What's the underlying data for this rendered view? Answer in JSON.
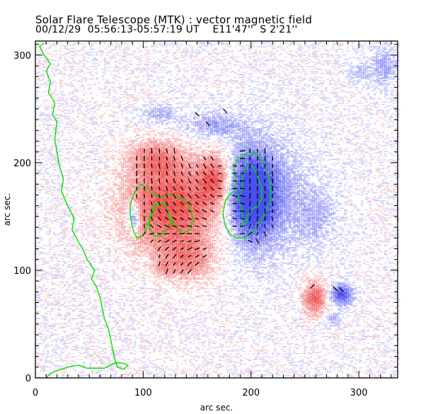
{
  "chart_data": {
    "type": "heatmap",
    "title": "Solar Flare Telescope (MTK) : vector magnetic field",
    "subtitle": {
      "date": "00/12/29",
      "time_range": "05:56:13-05:57:19 UT",
      "longitude": "E11'47''",
      "latitude": "S 2'21''"
    },
    "xlabel": "arc sec.",
    "ylabel": "arc sec.",
    "xlim": [
      0,
      336
    ],
    "ylim": [
      0,
      313
    ],
    "xticks": [
      0,
      100,
      200,
      300
    ],
    "yticks": [
      0,
      100,
      200,
      300
    ],
    "x_minor_step": 10,
    "y_minor_step": 10,
    "colors": {
      "positive_polarity": "#f05050",
      "negative_polarity": "#4a50f0",
      "contour": "#00e000",
      "vectors": "#000000"
    },
    "regions": [
      {
        "name": "positive-main",
        "polarity": "positive",
        "cx": 125,
        "cy": 160,
        "rx": 45,
        "ry": 45,
        "strength": 0.9
      },
      {
        "name": "positive-upper",
        "polarity": "positive",
        "cx": 110,
        "cy": 205,
        "rx": 25,
        "ry": 18,
        "strength": 0.45
      },
      {
        "name": "positive-lower",
        "polarity": "positive",
        "cx": 140,
        "cy": 110,
        "rx": 25,
        "ry": 20,
        "strength": 0.45
      },
      {
        "name": "positive-east",
        "polarity": "positive",
        "cx": 165,
        "cy": 185,
        "rx": 15,
        "ry": 25,
        "strength": 0.7
      },
      {
        "name": "positive-spot-sw",
        "polarity": "positive",
        "cx": 258,
        "cy": 75,
        "rx": 12,
        "ry": 16,
        "strength": 0.75
      },
      {
        "name": "positive-faint",
        "polarity": "positive",
        "cx": 118,
        "cy": 103,
        "rx": 8,
        "ry": 8,
        "strength": 0.25
      },
      {
        "name": "negative-main",
        "polarity": "negative",
        "cx": 200,
        "cy": 170,
        "rx": 20,
        "ry": 38,
        "strength": 1.0
      },
      {
        "name": "negative-halo",
        "polarity": "negative",
        "cx": 210,
        "cy": 170,
        "rx": 40,
        "ry": 55,
        "strength": 0.45
      },
      {
        "name": "negative-west",
        "polarity": "negative",
        "cx": 90,
        "cy": 150,
        "rx": 6,
        "ry": 14,
        "strength": 0.7
      },
      {
        "name": "negative-north",
        "polarity": "negative",
        "cx": 165,
        "cy": 235,
        "rx": 30,
        "ry": 12,
        "strength": 0.35
      },
      {
        "name": "negative-nw",
        "polarity": "negative",
        "cx": 115,
        "cy": 245,
        "rx": 18,
        "ry": 10,
        "strength": 0.3
      },
      {
        "name": "negative-spot-sw",
        "polarity": "negative",
        "cx": 283,
        "cy": 78,
        "rx": 11,
        "ry": 10,
        "strength": 0.85
      },
      {
        "name": "negative-small",
        "polarity": "negative",
        "cx": 275,
        "cy": 55,
        "rx": 8,
        "ry": 6,
        "strength": 0.35
      },
      {
        "name": "negative-ne",
        "polarity": "negative",
        "cx": 322,
        "cy": 290,
        "rx": 12,
        "ry": 18,
        "strength": 0.35
      },
      {
        "name": "negative-ne2",
        "polarity": "negative",
        "cx": 300,
        "cy": 285,
        "rx": 12,
        "ry": 8,
        "strength": 0.25
      },
      {
        "name": "negative-east",
        "polarity": "negative",
        "cx": 260,
        "cy": 150,
        "rx": 18,
        "ry": 28,
        "strength": 0.25
      }
    ],
    "contours": [
      {
        "name": "limb",
        "points": [
          [
            8,
            311
          ],
          [
            4,
            308
          ],
          [
            8,
            300
          ],
          [
            14,
            292
          ],
          [
            10,
            285
          ],
          [
            14,
            275
          ],
          [
            12,
            265
          ],
          [
            17,
            258
          ],
          [
            18,
            255
          ],
          [
            16,
            245
          ],
          [
            20,
            238
          ],
          [
            18,
            222
          ],
          [
            20,
            210
          ],
          [
            22,
            198
          ],
          [
            26,
            185
          ],
          [
            24,
            174
          ],
          [
            30,
            160
          ],
          [
            36,
            148
          ],
          [
            34,
            138
          ],
          [
            40,
            126
          ],
          [
            45,
            118
          ],
          [
            48,
            110
          ],
          [
            55,
            100
          ],
          [
            52,
            92
          ],
          [
            56,
            86
          ],
          [
            60,
            75
          ],
          [
            62,
            65
          ],
          [
            64,
            55
          ],
          [
            68,
            45
          ],
          [
            70,
            35
          ],
          [
            72,
            25
          ],
          [
            74,
            16
          ],
          [
            76,
            10
          ],
          [
            82,
            8
          ],
          [
            86,
            12
          ],
          [
            80,
            14
          ],
          [
            74,
            14
          ],
          [
            64,
            9
          ],
          [
            48,
            9
          ],
          [
            40,
            12
          ],
          [
            30,
            10
          ],
          [
            18,
            6
          ],
          [
            14,
            4
          ],
          [
            10,
            0
          ]
        ]
      },
      {
        "name": "positive-contour-outer",
        "points": [
          [
            98,
            180
          ],
          [
            104,
            176
          ],
          [
            110,
            170
          ],
          [
            116,
            168
          ],
          [
            124,
            170
          ],
          [
            132,
            168
          ],
          [
            138,
            166
          ],
          [
            144,
            158
          ],
          [
            146,
            148
          ],
          [
            144,
            138
          ],
          [
            136,
            134
          ],
          [
            130,
            140
          ],
          [
            126,
            148
          ],
          [
            122,
            156
          ],
          [
            120,
            162
          ],
          [
            114,
            162
          ],
          [
            108,
            152
          ],
          [
            104,
            142
          ],
          [
            100,
            132
          ],
          [
            94,
            130
          ],
          [
            90,
            140
          ],
          [
            88,
            152
          ],
          [
            88,
            162
          ],
          [
            92,
            172
          ],
          [
            98,
            180
          ]
        ]
      },
      {
        "name": "positive-contour-inner",
        "points": [
          [
            110,
            160
          ],
          [
            114,
            162
          ],
          [
            120,
            162
          ],
          [
            122,
            156
          ],
          [
            124,
            150
          ],
          [
            126,
            144
          ],
          [
            122,
            138
          ],
          [
            116,
            132
          ],
          [
            110,
            132
          ],
          [
            106,
            140
          ],
          [
            106,
            150
          ],
          [
            110,
            160
          ]
        ]
      },
      {
        "name": "negative-contour-outer",
        "points": [
          [
            198,
            210
          ],
          [
            206,
            208
          ],
          [
            212,
            200
          ],
          [
            216,
            190
          ],
          [
            218,
            178
          ],
          [
            218,
            165
          ],
          [
            214,
            155
          ],
          [
            208,
            145
          ],
          [
            202,
            135
          ],
          [
            194,
            130
          ],
          [
            186,
            130
          ],
          [
            180,
            134
          ],
          [
            176,
            142
          ],
          [
            174,
            152
          ],
          [
            176,
            164
          ],
          [
            180,
            170
          ],
          [
            186,
            175
          ],
          [
            186,
            185
          ],
          [
            184,
            195
          ],
          [
            188,
            204
          ],
          [
            198,
            210
          ]
        ]
      },
      {
        "name": "negative-contour-inner",
        "points": [
          [
            196,
            198
          ],
          [
            202,
            196
          ],
          [
            206,
            188
          ],
          [
            210,
            176
          ],
          [
            210,
            166
          ],
          [
            206,
            160
          ],
          [
            200,
            156
          ],
          [
            196,
            150
          ],
          [
            196,
            144
          ],
          [
            192,
            142
          ],
          [
            192,
            156
          ],
          [
            190,
            162
          ],
          [
            188,
            168
          ],
          [
            192,
            176
          ],
          [
            192,
            186
          ],
          [
            196,
            198
          ]
        ]
      }
    ],
    "vector_grid": {
      "x_step": 7,
      "y_step": 7,
      "x_range": [
        80,
        220
      ],
      "y_range": [
        85,
        215
      ]
    }
  }
}
